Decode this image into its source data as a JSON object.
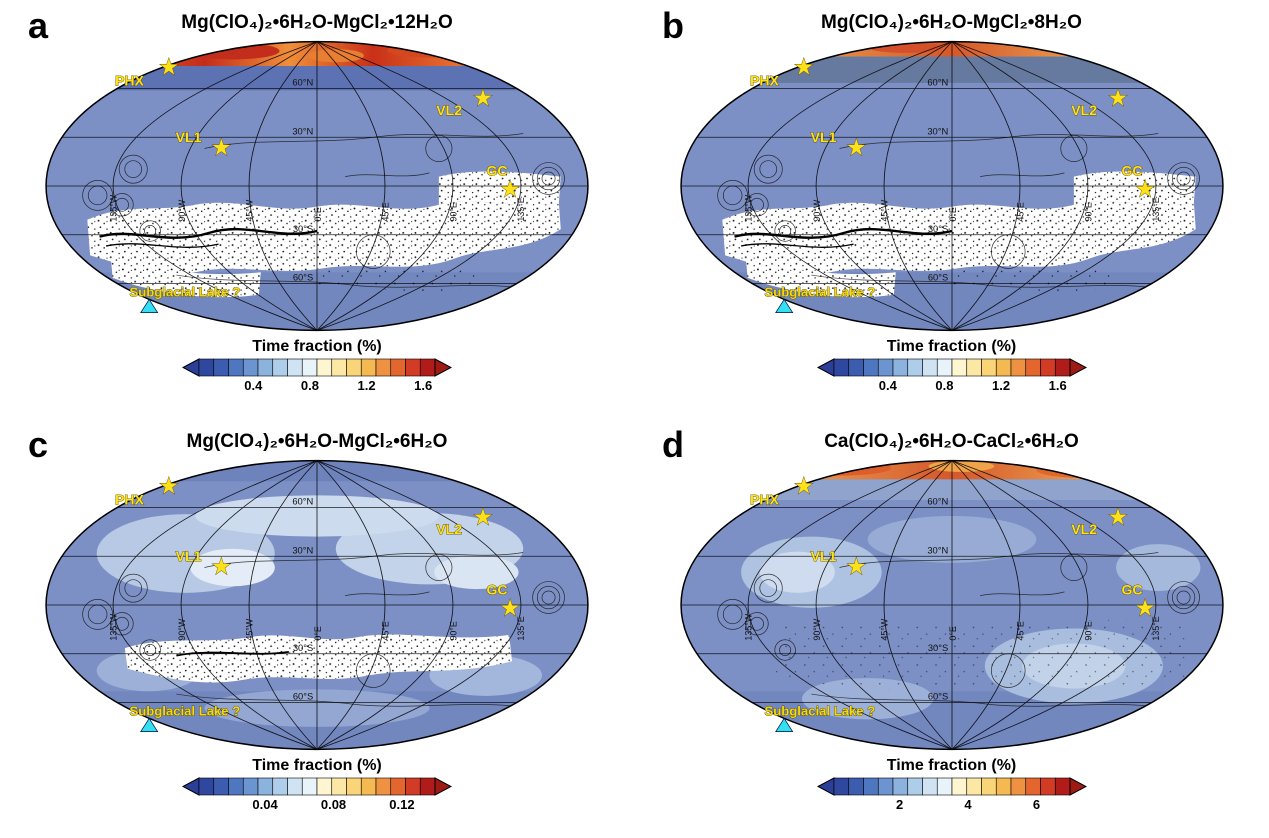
{
  "figure": {
    "icons": {
      "star": "★"
    },
    "map_labels": {
      "lat": [
        "60°N",
        "30°N",
        "30°S",
        "60°S"
      ],
      "lon": [
        "135°W",
        "90°W",
        "45°W",
        "0°E",
        "45°E",
        "90°E",
        "135°E"
      ]
    },
    "markers": {
      "phx": "PHX",
      "vl1": "VL1",
      "vl2": "VL2",
      "gc": "GC",
      "subglacial": "Subglacial Lake ?"
    },
    "map_base_color": "#7c90c6",
    "marker_color": "#ffe11a",
    "triangle_color": "#35dff2",
    "colorbar_arrow_left": "#2b3f99",
    "colorbar_arrow_right": "#9e1a15",
    "colorbar_colors": [
      "#30479f",
      "#3c5cb0",
      "#4f77c1",
      "#6b94d1",
      "#8cb2de",
      "#aecdea",
      "#cfe3f3",
      "#e9f3fa",
      "#fdf6d0",
      "#fce8a4",
      "#f9d578",
      "#f5b951",
      "#ee9140",
      "#e3662f",
      "#d23b24",
      "#b01c19"
    ],
    "panels": [
      {
        "letter": "a",
        "title": "Mg(ClO₄)₂•6H₂O-MgCl₂•12H₂O",
        "colorbar": {
          "label": "Time fraction (%)",
          "ticks": [
            {
              "label": "0.4",
              "pos": 23
            },
            {
              "label": "0.8",
              "pos": 47
            },
            {
              "label": "1.2",
              "pos": 71
            },
            {
              "label": "1.6",
              "pos": 95
            }
          ]
        }
      },
      {
        "letter": "b",
        "title": "Mg(ClO₄)₂•6H₂O-MgCl₂•8H₂O",
        "colorbar": {
          "label": "Time fraction (%)",
          "ticks": [
            {
              "label": "0.4",
              "pos": 23
            },
            {
              "label": "0.8",
              "pos": 47
            },
            {
              "label": "1.2",
              "pos": 71
            },
            {
              "label": "1.6",
              "pos": 95
            }
          ]
        }
      },
      {
        "letter": "c",
        "title": "Mg(ClO₄)₂•6H₂O-MgCl₂•6H₂O",
        "colorbar": {
          "label": "Time fraction (%)",
          "ticks": [
            {
              "label": "0.04",
              "pos": 28
            },
            {
              "label": "0.08",
              "pos": 57
            },
            {
              "label": "0.12",
              "pos": 86
            }
          ]
        }
      },
      {
        "letter": "d",
        "title": "Ca(ClO₄)₂•6H₂O-CaCl₂•6H₂O",
        "colorbar": {
          "label": "Time fraction (%)",
          "ticks": [
            {
              "label": "2",
              "pos": 28
            },
            {
              "label": "4",
              "pos": 57
            },
            {
              "label": "6",
              "pos": 86
            }
          ]
        }
      }
    ]
  }
}
